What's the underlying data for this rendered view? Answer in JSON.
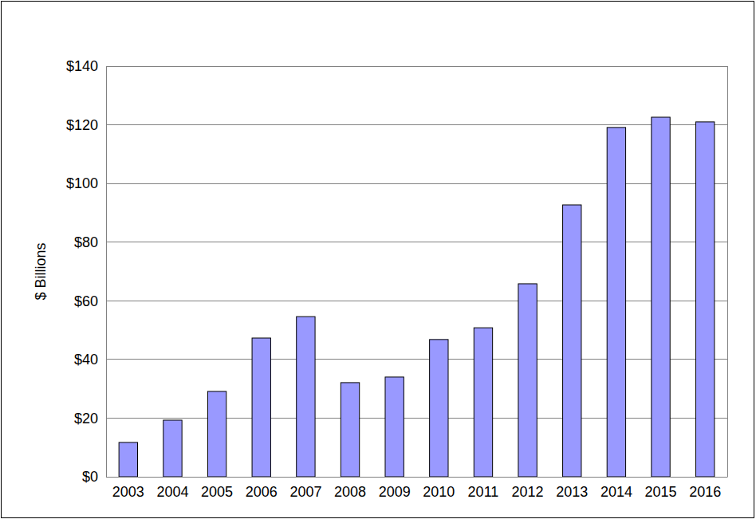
{
  "chart_data": {
    "type": "bar",
    "y_label": "$ Billions",
    "categories": [
      "2003",
      "2004",
      "2005",
      "2006",
      "2007",
      "2008",
      "2009",
      "2010",
      "2011",
      "2012",
      "2013",
      "2014",
      "2015",
      "2016"
    ],
    "values": [
      11.7,
      19.3,
      29.1,
      47.3,
      54.6,
      32.1,
      34.0,
      46.8,
      50.8,
      65.8,
      92.7,
      119.1,
      122.6,
      121.0
    ],
    "color": "#9999ff",
    "ylim": [
      0,
      140
    ],
    "yticks": [
      {
        "value": 0,
        "label": "$0"
      },
      {
        "value": 20,
        "label": "$20"
      },
      {
        "value": 40,
        "label": "$40"
      },
      {
        "value": 60,
        "label": "$60"
      },
      {
        "value": 80,
        "label": "$80"
      },
      {
        "value": 100,
        "label": "$100"
      },
      {
        "value": 120,
        "label": "$120"
      },
      {
        "value": 140,
        "label": "$140"
      }
    ],
    "grid": true
  }
}
